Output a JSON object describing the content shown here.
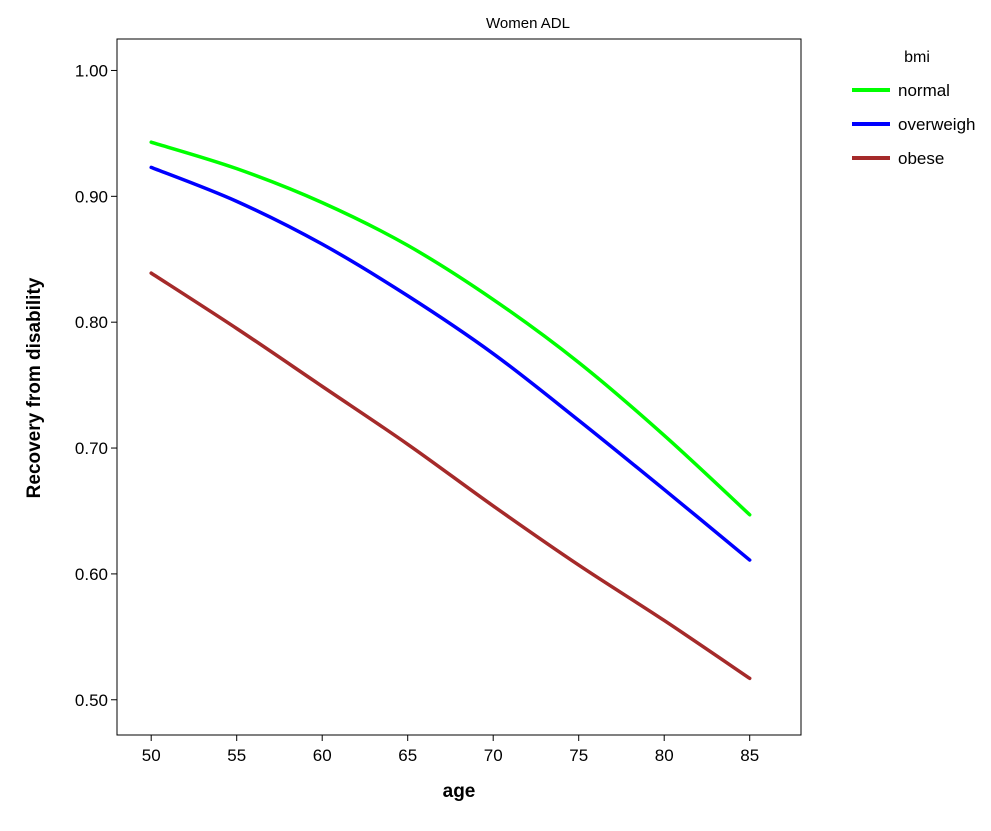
{
  "chart_data": {
    "type": "line",
    "title": "Women ADL",
    "xlabel": "age",
    "ylabel": "Recovery from disability",
    "xlim": [
      48,
      88
    ],
    "ylim": [
      0.472,
      1.025
    ],
    "xticks": [
      50,
      55,
      60,
      65,
      70,
      75,
      80,
      85
    ],
    "xtick_labels": [
      "50",
      "55",
      "60",
      "65",
      "70",
      "75",
      "80",
      "85"
    ],
    "yticks": [
      0.5,
      0.6,
      0.7,
      0.8,
      0.9,
      1.0
    ],
    "ytick_labels": [
      "0.50",
      "0.60",
      "0.70",
      "0.80",
      "0.90",
      "1.00"
    ],
    "grid": false,
    "legend": {
      "title": "bmi",
      "placement": "right"
    },
    "x": [
      50,
      55,
      60,
      65,
      70,
      75,
      80,
      85
    ],
    "series": [
      {
        "name": "normal",
        "color": "#00ff00",
        "values": [
          0.943,
          0.922,
          0.895,
          0.861,
          0.818,
          0.768,
          0.71,
          0.647
        ]
      },
      {
        "name": "overweigh",
        "color": "#0000ff",
        "values": [
          0.923,
          0.896,
          0.862,
          0.821,
          0.775,
          0.722,
          0.667,
          0.611
        ]
      },
      {
        "name": "obese",
        "color": "#a52a2a",
        "values": [
          0.839,
          0.795,
          0.749,
          0.703,
          0.654,
          0.607,
          0.563,
          0.517
        ]
      }
    ]
  }
}
